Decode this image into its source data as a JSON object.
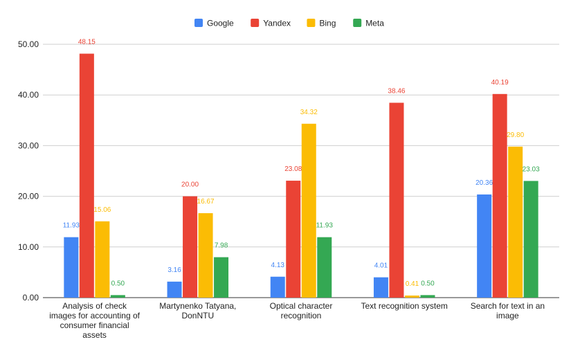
{
  "chart_data": {
    "type": "bar",
    "title": "",
    "xlabel": "",
    "ylabel": "",
    "categories": [
      [
        "Analysis of check",
        "images for accounting of",
        "consumer financial",
        "assets"
      ],
      [
        "Martynenko Tatyana,",
        "DonNTU"
      ],
      [
        "Optical character",
        "recognition"
      ],
      [
        "Text recognition system"
      ],
      [
        "Search for text in an",
        "image"
      ]
    ],
    "series": [
      {
        "name": "Google",
        "color": "#4285F4",
        "values": [
          11.93,
          3.16,
          4.13,
          4.01,
          20.36
        ],
        "labels": [
          "11.93",
          "3.16",
          "4.13",
          "4.01",
          "20.36"
        ]
      },
      {
        "name": "Yandex",
        "color": "#EA4335",
        "values": [
          48.15,
          20.0,
          23.08,
          38.46,
          40.19
        ],
        "labels": [
          "48.15",
          "20.00",
          "23.08",
          "38.46",
          "40.19"
        ]
      },
      {
        "name": "Bing",
        "color": "#FBBC04",
        "values": [
          15.06,
          16.67,
          34.32,
          0.41,
          29.8
        ],
        "labels": [
          "15.06",
          "16.67",
          "34.32",
          "0.41",
          "29.80"
        ]
      },
      {
        "name": "Meta",
        "color": "#34A853",
        "values": [
          0.5,
          7.98,
          11.93,
          0.5,
          23.03
        ],
        "labels": [
          "0.50",
          "7.98",
          "11.93",
          "0.50",
          "23.03"
        ]
      }
    ],
    "ylim": [
      0,
      50
    ],
    "yticks": [
      "0.00",
      "10.00",
      "20.00",
      "30.00",
      "40.00",
      "50.00"
    ],
    "grid": true,
    "legend_position": "top-center"
  }
}
